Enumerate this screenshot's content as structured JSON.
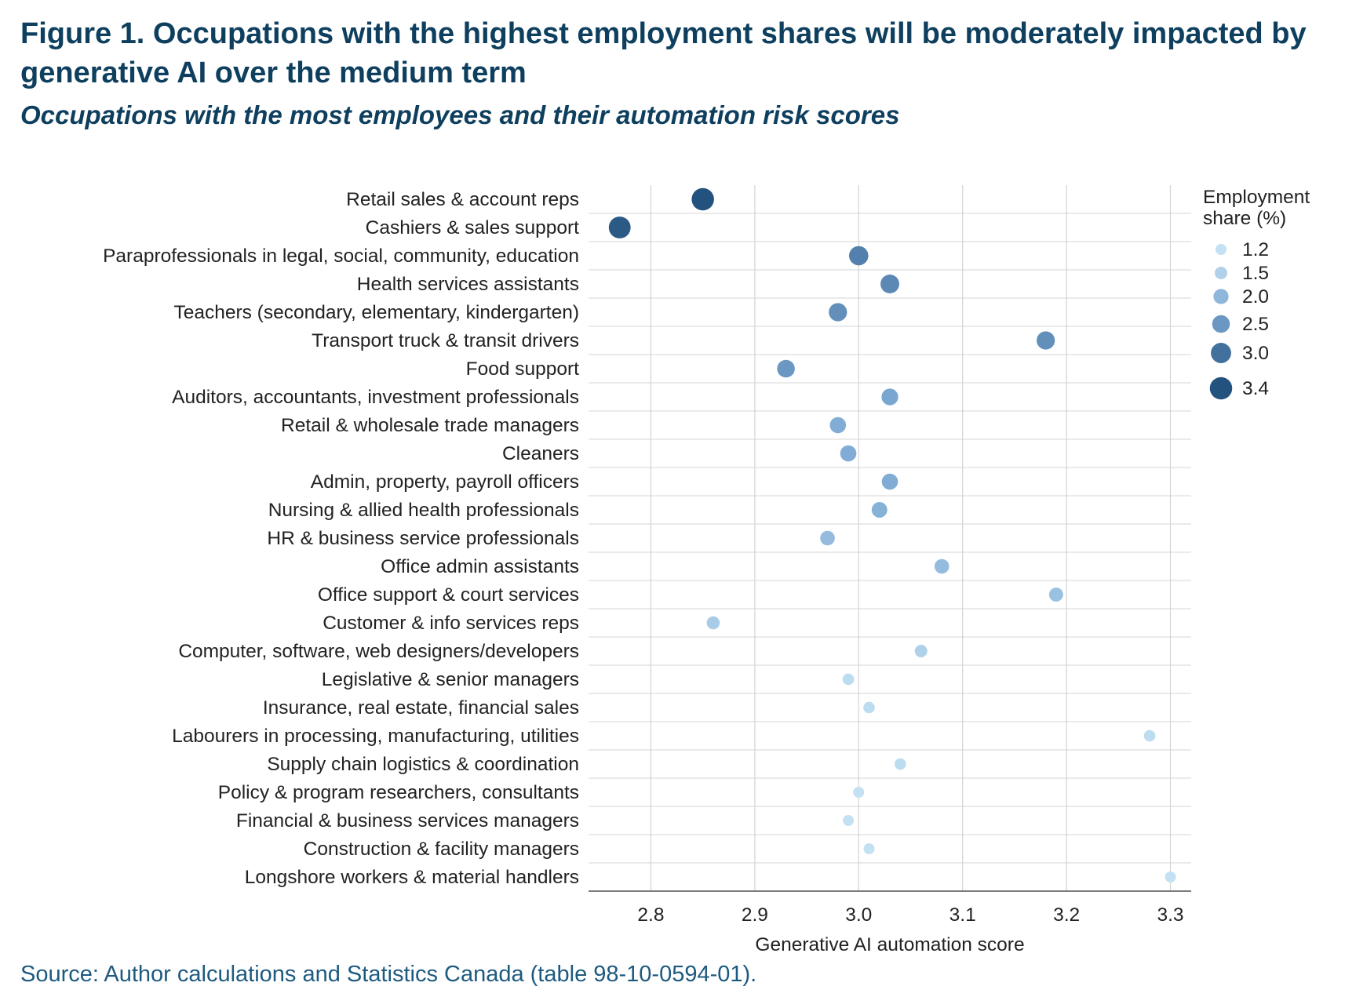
{
  "title": "Figure 1. Occupations with the highest employment shares will be moderately impacted by generative AI over the medium term",
  "subtitle": "Occupations with the most employees and their automation risk scores",
  "source": "Source: Author calculations and Statistics Canada (table 98-10-0594-01).",
  "chart_data": {
    "type": "scatter",
    "xlabel": "Generative AI automation score",
    "xlim": [
      2.74,
      3.32
    ],
    "xticks": [
      "2.8",
      "2.9",
      "3.0",
      "3.1",
      "3.2",
      "3.3"
    ],
    "xtick_values": [
      2.8,
      2.9,
      3.0,
      3.1,
      3.2,
      3.3
    ],
    "grid": true,
    "legend": {
      "title": [
        "Employment",
        "share (%)"
      ],
      "placement": "right",
      "entries": [
        {
          "label": "1.2",
          "value": 1.2
        },
        {
          "label": "1.5",
          "value": 1.5
        },
        {
          "label": "2.0",
          "value": 2.0
        },
        {
          "label": "2.5",
          "value": 2.5
        },
        {
          "label": "3.0",
          "value": 3.0
        },
        {
          "label": "3.4",
          "value": 3.4
        }
      ]
    },
    "color_scale": {
      "light": "#c3e1f3",
      "mid": "#7aa7d2",
      "dark": "#24527f"
    },
    "points": [
      {
        "category": "Retail sales & account reps",
        "score": 2.85,
        "share": 3.4
      },
      {
        "category": "Cashiers & sales support",
        "score": 2.77,
        "share": 3.3
      },
      {
        "category": "Paraprofessionals in legal, social, community, education",
        "score": 3.0,
        "share": 2.8
      },
      {
        "category": "Health services assistants",
        "score": 3.03,
        "share": 2.7
      },
      {
        "category": "Teachers (secondary, elementary, kindergarten)",
        "score": 2.98,
        "share": 2.6
      },
      {
        "category": "Transport truck & transit drivers",
        "score": 3.18,
        "share": 2.6
      },
      {
        "category": "Food support",
        "score": 2.93,
        "share": 2.5
      },
      {
        "category": "Auditors, accountants, investment professionals",
        "score": 3.03,
        "share": 2.3
      },
      {
        "category": "Retail & wholesale trade managers",
        "score": 2.98,
        "share": 2.2
      },
      {
        "category": "Cleaners",
        "score": 2.99,
        "share": 2.2
      },
      {
        "category": "Admin, property, payroll officers",
        "score": 3.03,
        "share": 2.2
      },
      {
        "category": "Nursing & allied health professionals",
        "score": 3.02,
        "share": 2.1
      },
      {
        "category": "HR & business service professionals",
        "score": 2.97,
        "share": 1.9
      },
      {
        "category": "Office admin assistants",
        "score": 3.08,
        "share": 1.9
      },
      {
        "category": "Office support & court services",
        "score": 3.19,
        "share": 1.8
      },
      {
        "category": "Customer & info services reps",
        "score": 2.86,
        "share": 1.6
      },
      {
        "category": "Computer, software, web designers/developers",
        "score": 3.06,
        "share": 1.5
      },
      {
        "category": "Legislative & senior managers",
        "score": 2.99,
        "share": 1.3
      },
      {
        "category": "Insurance, real estate, financial sales",
        "score": 3.01,
        "share": 1.3
      },
      {
        "category": "Labourers in processing, manufacturing, utilities",
        "score": 3.28,
        "share": 1.3
      },
      {
        "category": "Supply chain logistics & coordination",
        "score": 3.04,
        "share": 1.3
      },
      {
        "category": "Policy & program researchers, consultants",
        "score": 3.0,
        "share": 1.2
      },
      {
        "category": "Financial & business services managers",
        "score": 2.99,
        "share": 1.2
      },
      {
        "category": "Construction & facility managers",
        "score": 3.01,
        "share": 1.2
      },
      {
        "category": "Longshore workers & material handlers",
        "score": 3.3,
        "share": 1.2
      }
    ]
  }
}
